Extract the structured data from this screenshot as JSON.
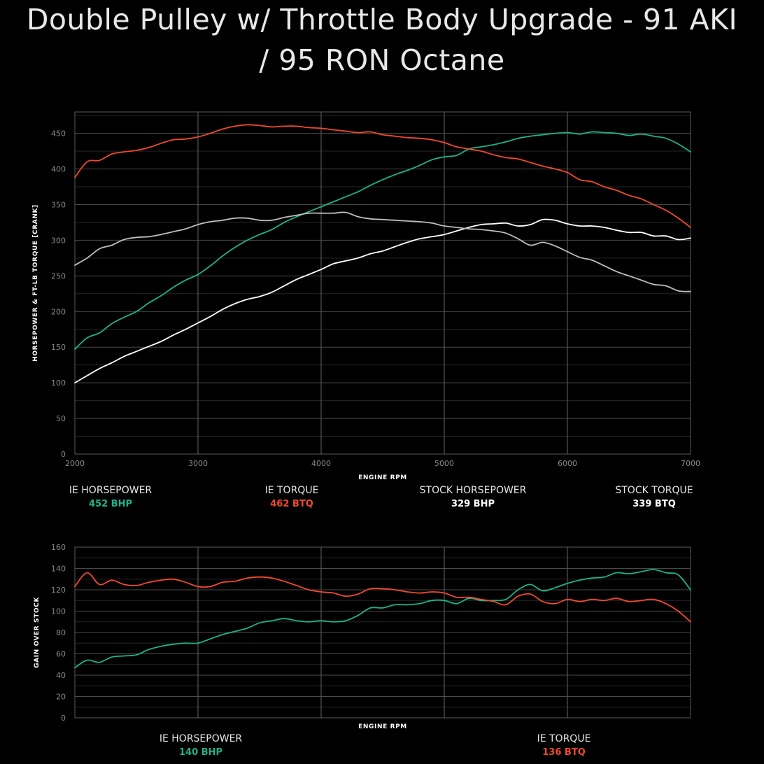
{
  "title": {
    "line1": "Double Pulley w/ Throttle Body Upgrade - 91 AKI",
    "line2": "/ 95 RON Octane"
  },
  "colors": {
    "ie_horsepower": "#1db389",
    "ie_torque": "#f2492c",
    "stock_horsepower": "#ffffff",
    "stock_torque": "#bdbdbd",
    "grid": "#3c3c3c",
    "border": "#6a6a6a"
  },
  "main_legend": [
    {
      "name": "IE HORSEPOWER",
      "value": "452 BHP",
      "color": "#1db389"
    },
    {
      "name": "IE TORQUE",
      "value": "462 BTQ",
      "color": "#f2492c"
    },
    {
      "name": "STOCK HORSEPOWER",
      "value": "329 BHP",
      "color": "#ffffff"
    },
    {
      "name": "STOCK TORQUE",
      "value": "339 BTQ",
      "color": "#ffffff"
    }
  ],
  "gain_legend": [
    {
      "name": "IE HORSEPOWER",
      "value": "140 BHP",
      "color": "#1db389"
    },
    {
      "name": "IE TORQUE",
      "value": "136 BTQ",
      "color": "#f2492c"
    }
  ],
  "chart_data": [
    {
      "type": "line",
      "title": "Double Pulley w/ Throttle Body Upgrade - 91 AKI / 95 RON Octane",
      "xlabel": "ENGINE RPM",
      "ylabel": "HORSEPOWER & FT-LB TORQUE [CRANK]",
      "xlim": [
        2000,
        7000
      ],
      "ylim": [
        0,
        480
      ],
      "xticks": [
        2000,
        3000,
        4000,
        5000,
        6000,
        7000
      ],
      "yticks": [
        0,
        50,
        100,
        150,
        200,
        250,
        300,
        350,
        400,
        450
      ],
      "grid": true,
      "series": [
        {
          "name": "IE HORSEPOWER",
          "color": "#1db389",
          "x": [
            2000,
            2100,
            2200,
            2300,
            2400,
            2500,
            2600,
            2700,
            2800,
            2900,
            3000,
            3100,
            3200,
            3300,
            3400,
            3500,
            3600,
            3700,
            3800,
            3900,
            4000,
            4100,
            4200,
            4300,
            4400,
            4500,
            4600,
            4700,
            4800,
            4900,
            5000,
            5100,
            5200,
            5300,
            5400,
            5500,
            5600,
            5700,
            5800,
            5900,
            6000,
            6100,
            6200,
            6300,
            6400,
            6500,
            6600,
            6700,
            6800,
            6900,
            7000
          ],
          "y": [
            147,
            163,
            170,
            183,
            192,
            200,
            212,
            222,
            234,
            244,
            252,
            264,
            278,
            290,
            300,
            308,
            315,
            325,
            333,
            340,
            347,
            354,
            361,
            368,
            377,
            385,
            392,
            398,
            405,
            413,
            417,
            419,
            428,
            431,
            434,
            438,
            443,
            446,
            448,
            450,
            451,
            449,
            452,
            451,
            450,
            447,
            449,
            446,
            443,
            435,
            424
          ]
        },
        {
          "name": "IE TORQUE",
          "color": "#f2492c",
          "x": [
            2000,
            2100,
            2200,
            2300,
            2400,
            2500,
            2600,
            2700,
            2800,
            2900,
            3000,
            3100,
            3200,
            3300,
            3400,
            3500,
            3600,
            3700,
            3800,
            3900,
            4000,
            4100,
            4200,
            4300,
            4400,
            4500,
            4600,
            4700,
            4800,
            4900,
            5000,
            5100,
            5200,
            5300,
            5400,
            5500,
            5600,
            5700,
            5800,
            5900,
            6000,
            6100,
            6200,
            6300,
            6400,
            6500,
            6600,
            6700,
            6800,
            6900,
            7000
          ],
          "y": [
            388,
            410,
            412,
            421,
            424,
            426,
            430,
            436,
            441,
            442,
            445,
            450,
            456,
            460,
            462,
            461,
            459,
            460,
            460,
            458,
            457,
            455,
            453,
            451,
            452,
            448,
            446,
            444,
            443,
            441,
            437,
            431,
            428,
            425,
            420,
            416,
            414,
            409,
            404,
            400,
            395,
            385,
            382,
            375,
            370,
            363,
            358,
            350,
            342,
            331,
            318
          ]
        },
        {
          "name": "STOCK HORSEPOWER",
          "color": "#ffffff",
          "x": [
            2000,
            2100,
            2200,
            2300,
            2400,
            2500,
            2600,
            2700,
            2800,
            2900,
            3000,
            3100,
            3200,
            3300,
            3400,
            3500,
            3600,
            3700,
            3800,
            3900,
            4000,
            4100,
            4200,
            4300,
            4400,
            4500,
            4600,
            4700,
            4800,
            4900,
            5000,
            5100,
            5200,
            5300,
            5400,
            5500,
            5600,
            5700,
            5800,
            5900,
            6000,
            6100,
            6200,
            6300,
            6400,
            6500,
            6600,
            6700,
            6800,
            6900,
            7000
          ],
          "y": [
            100,
            110,
            120,
            128,
            137,
            144,
            151,
            158,
            167,
            175,
            184,
            193,
            203,
            211,
            217,
            221,
            227,
            236,
            245,
            252,
            259,
            267,
            271,
            275,
            281,
            285,
            291,
            297,
            302,
            305,
            308,
            313,
            318,
            322,
            323,
            324,
            320,
            322,
            329,
            328,
            323,
            320,
            320,
            318,
            314,
            311,
            311,
            306,
            306,
            301,
            303
          ]
        },
        {
          "name": "STOCK TORQUE",
          "color": "#bdbdbd",
          "x": [
            2000,
            2100,
            2200,
            2300,
            2400,
            2500,
            2600,
            2700,
            2800,
            2900,
            3000,
            3100,
            3200,
            3300,
            3400,
            3500,
            3600,
            3700,
            3800,
            3900,
            4000,
            4100,
            4200,
            4300,
            4400,
            4500,
            4600,
            4700,
            4800,
            4900,
            5000,
            5100,
            5200,
            5300,
            5400,
            5500,
            5600,
            5700,
            5800,
            5900,
            6000,
            6100,
            6200,
            6300,
            6400,
            6500,
            6600,
            6700,
            6800,
            6900,
            7000
          ],
          "y": [
            265,
            275,
            288,
            293,
            301,
            304,
            305,
            308,
            312,
            316,
            322,
            326,
            328,
            331,
            331,
            328,
            328,
            332,
            335,
            338,
            338,
            338,
            339,
            333,
            330,
            329,
            328,
            327,
            326,
            324,
            320,
            318,
            316,
            315,
            313,
            310,
            302,
            293,
            297,
            292,
            284,
            276,
            272,
            264,
            256,
            250,
            244,
            238,
            236,
            229,
            228
          ]
        }
      ]
    },
    {
      "type": "line",
      "xlabel": "ENGINE RPM",
      "ylabel": "GAIN OVER STOCK",
      "xlim": [
        2000,
        7000
      ],
      "ylim": [
        0,
        160
      ],
      "yticks": [
        0,
        20,
        40,
        60,
        80,
        100,
        120,
        140,
        160
      ],
      "grid": true,
      "series": [
        {
          "name": "IE HORSEPOWER",
          "color": "#1db389",
          "x": [
            2000,
            2100,
            2200,
            2300,
            2400,
            2500,
            2600,
            2700,
            2800,
            2900,
            3000,
            3100,
            3200,
            3300,
            3400,
            3500,
            3600,
            3700,
            3800,
            3900,
            4000,
            4100,
            4200,
            4300,
            4400,
            4500,
            4600,
            4700,
            4800,
            4900,
            5000,
            5100,
            5200,
            5300,
            5400,
            5500,
            5600,
            5700,
            5800,
            5900,
            6000,
            6100,
            6200,
            6300,
            6400,
            6500,
            6600,
            6700,
            6800,
            6900,
            7000
          ],
          "y": [
            47,
            54,
            52,
            57,
            58,
            59,
            64,
            67,
            69,
            70,
            70,
            74,
            78,
            81,
            84,
            89,
            91,
            93,
            91,
            90,
            91,
            90,
            91,
            96,
            103,
            103,
            106,
            106,
            107,
            110,
            110,
            107,
            112,
            110,
            110,
            111,
            120,
            125,
            119,
            122,
            126,
            129,
            131,
            132,
            136,
            135,
            137,
            139,
            136,
            134,
            120
          ]
        },
        {
          "name": "IE TORQUE",
          "color": "#f2492c",
          "x": [
            2000,
            2100,
            2200,
            2300,
            2400,
            2500,
            2600,
            2700,
            2800,
            2900,
            3000,
            3100,
            3200,
            3300,
            3400,
            3500,
            3600,
            3700,
            3800,
            3900,
            4000,
            4100,
            4200,
            4300,
            4400,
            4500,
            4600,
            4700,
            4800,
            4900,
            5000,
            5100,
            5200,
            5300,
            5400,
            5500,
            5600,
            5700,
            5800,
            5900,
            6000,
            6100,
            6200,
            6300,
            6400,
            6500,
            6600,
            6700,
            6800,
            6900,
            7000
          ],
          "y": [
            123,
            136,
            125,
            129,
            125,
            124,
            127,
            129,
            130,
            127,
            123,
            123,
            127,
            128,
            131,
            132,
            131,
            128,
            124,
            120,
            118,
            117,
            114,
            116,
            121,
            121,
            120,
            118,
            117,
            118,
            117,
            113,
            113,
            111,
            109,
            106,
            114,
            116,
            109,
            107,
            111,
            109,
            111,
            110,
            112,
            109,
            110,
            111,
            107,
            100,
            90
          ]
        }
      ]
    }
  ]
}
